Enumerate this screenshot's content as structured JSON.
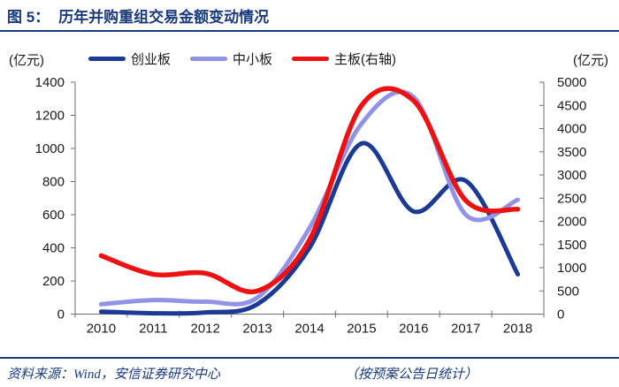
{
  "header": {
    "figure_label": "图 5：",
    "title": "历年并购重组交易金额变动情况"
  },
  "footer": {
    "source": "资料来源：Wind，安信证券研究中心",
    "note": "（按预案公告日统计）"
  },
  "colors": {
    "accent_navy": "#1a3a7e",
    "axis_gray": "#6e6e6e",
    "tick_text": "#1a1a1a"
  },
  "chart_data": {
    "type": "line",
    "smooth": true,
    "legend_position": "top",
    "x": [
      "2010",
      "2011",
      "2012",
      "2013",
      "2014",
      "2015",
      "2016",
      "2017",
      "2018"
    ],
    "series": [
      {
        "name": "创业板",
        "axis": "left",
        "color": "#1b3a94",
        "values": [
          15,
          5,
          10,
          60,
          400,
          1030,
          620,
          805,
          240
        ]
      },
      {
        "name": "中小板",
        "axis": "left",
        "color": "#9193e6",
        "values": [
          60,
          85,
          75,
          100,
          520,
          1150,
          1310,
          600,
          690
        ]
      },
      {
        "name": "主板(右轴)",
        "axis": "right",
        "color": "#ee1111",
        "values": [
          1260,
          860,
          880,
          500,
          1600,
          4500,
          4600,
          2450,
          2260
        ]
      }
    ],
    "left_axis": {
      "label": "(亿元)",
      "min": 0,
      "max": 1400,
      "step": 200,
      "ticks": [
        0,
        200,
        400,
        600,
        800,
        1000,
        1200,
        1400
      ]
    },
    "right_axis": {
      "label": "(亿元)",
      "min": 0,
      "max": 5000,
      "step": 500,
      "ticks": [
        0,
        500,
        1000,
        1500,
        2000,
        2500,
        3000,
        3500,
        4000,
        4500,
        5000
      ]
    }
  }
}
